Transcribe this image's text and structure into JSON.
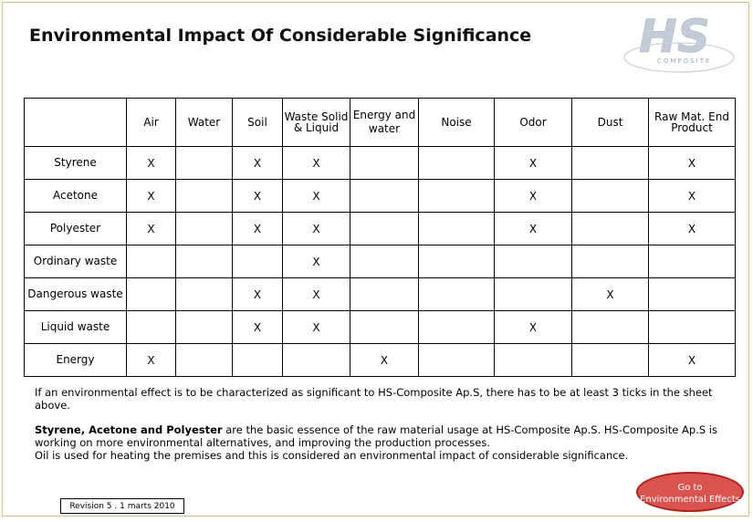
{
  "title": "Environmental Impact Of Considerable Significance",
  "logo": {
    "text": "HS",
    "subtext": "COMPOSITE"
  },
  "table": {
    "columns": [
      "",
      "Air",
      "Water",
      "Soil",
      "Waste Solid & Liquid",
      "Energy and water",
      "Noise",
      "Odor",
      "Dust",
      "Raw Mat. End Product"
    ],
    "rows": [
      {
        "label": "Styrene",
        "marks": [
          "X",
          "",
          "X",
          "X",
          "",
          "",
          "X",
          "",
          "X"
        ]
      },
      {
        "label": "Acetone",
        "marks": [
          "X",
          "",
          "X",
          "X",
          "",
          "",
          "X",
          "",
          "X"
        ]
      },
      {
        "label": "Polyester",
        "marks": [
          "X",
          "",
          "X",
          "X",
          "",
          "",
          "X",
          "",
          "X"
        ]
      },
      {
        "label": "Ordinary waste",
        "marks": [
          "",
          "",
          "",
          "X",
          "",
          "",
          "",
          "",
          ""
        ]
      },
      {
        "label": "Dangerous waste",
        "marks": [
          "",
          "",
          "X",
          "X",
          "",
          "",
          "",
          "X",
          ""
        ]
      },
      {
        "label": "Liquid waste",
        "marks": [
          "",
          "",
          "X",
          "X",
          "",
          "",
          "X",
          "",
          ""
        ]
      },
      {
        "label": "Energy",
        "marks": [
          "X",
          "",
          "",
          "",
          "X",
          "",
          "",
          "",
          "X"
        ]
      }
    ]
  },
  "notes": {
    "p1": "If an environmental effect is to be characterized as significant to HS-Composite Ap.S, there has to be at least 3 ticks in the sheet above.",
    "p2_bold": "Styrene, Acetone and Polyester",
    "p2_rest": " are the basic essence of the raw material usage at HS-Composite Ap.S. HS-Composite Ap.S is working on more environmental alternatives, and improving the production processes.",
    "p2_line3": "Oil is used for heating the premises and this is considered an environmental impact of considerable significance."
  },
  "revision": "Revision 5 . 1 marts 2010",
  "goto_button": {
    "line1": "Go to",
    "line2": "Environmental Effects"
  },
  "colors": {
    "button": "#d9534f",
    "logo": "#b8c4d0"
  }
}
